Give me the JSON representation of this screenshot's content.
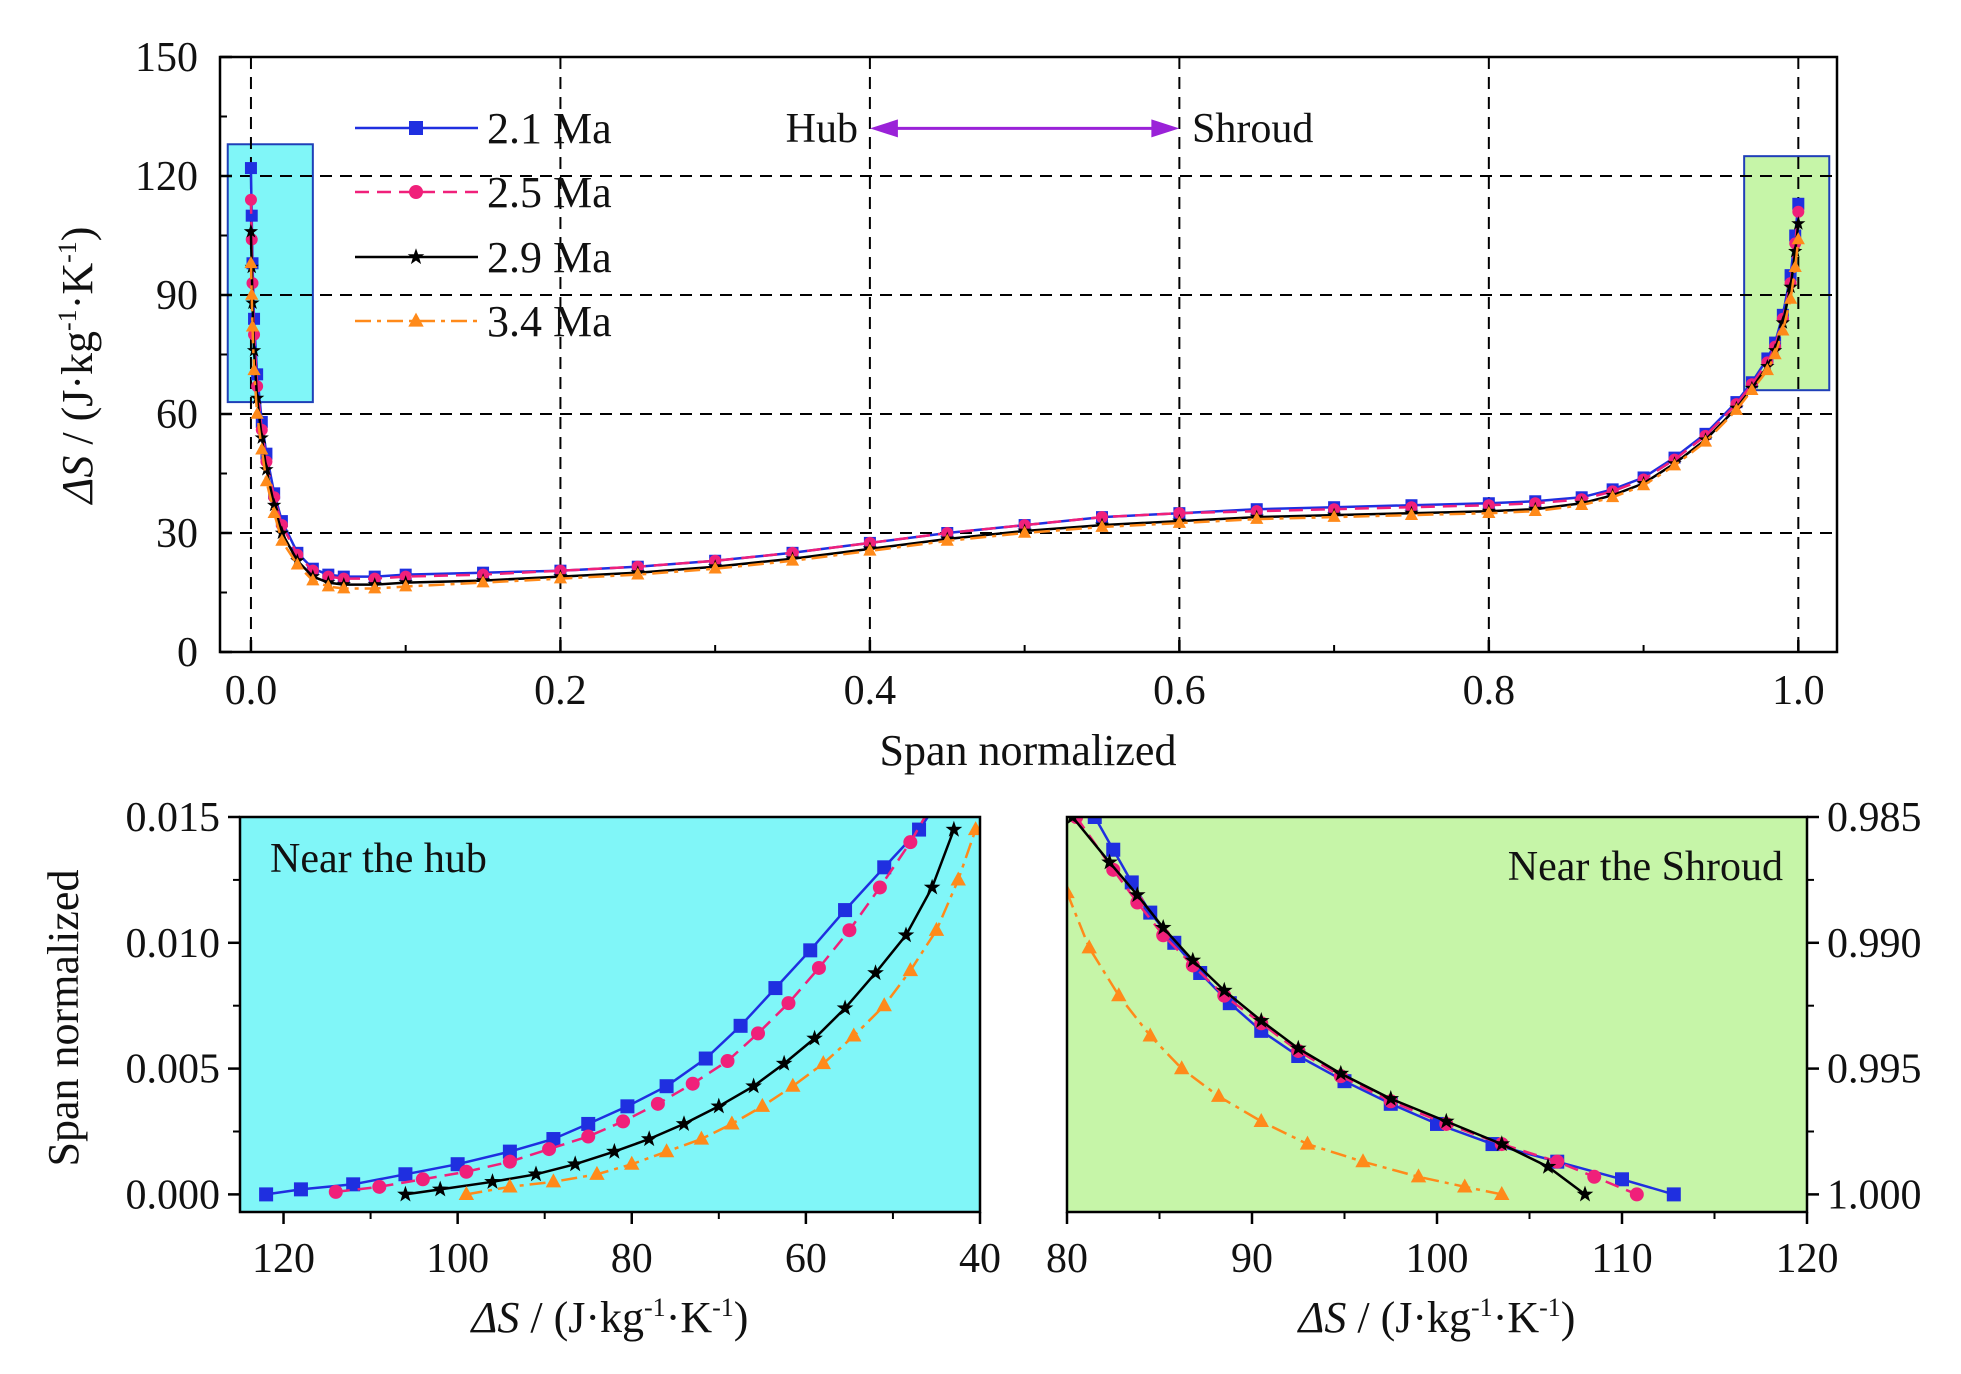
{
  "colors": {
    "s21": "#1f2fe0",
    "s25": "#f0207a",
    "s29": "#000000",
    "s34": "#ff8a1a",
    "hub_box": "#80f6f8",
    "shroud_box": "#c6f5a8",
    "hub_panel_bg": "#80f6f8",
    "shroud_panel_bg": "#c6f5a8",
    "arrow": "#9a22d8",
    "grid": "#000000"
  },
  "chart_data": [
    {
      "id": "main",
      "type": "line",
      "xlabel": "Span normalized",
      "ylabel_main": "ΔS",
      "ylabel_unit_prefix": " / (J·kg",
      "ylabel_unit_sup1": "-1",
      "ylabel_unit_mid": "·K",
      "ylabel_unit_sup2": "-1",
      "ylabel_unit_suffix": ")",
      "xlim": [
        -0.02,
        1.025
      ],
      "ylim": [
        0,
        150
      ],
      "xticks": [
        0.0,
        0.2,
        0.4,
        0.6,
        0.8,
        1.0
      ],
      "xtick_labels": [
        "0.0",
        "0.2",
        "0.4",
        "0.6",
        "0.8",
        "1.0"
      ],
      "yticks": [
        0,
        30,
        60,
        90,
        120,
        150
      ],
      "ytick_labels": [
        "0",
        "30",
        "60",
        "90",
        "120",
        "150"
      ],
      "grid": "dashed",
      "legend": {
        "position": "top-left",
        "entries": [
          "2.1 Ma",
          "2.5 Ma",
          "2.9 Ma",
          "3.4 Ma"
        ]
      },
      "annotation": {
        "left_label": "Hub",
        "right_label": "Shroud",
        "arrow_from_x": 0.4,
        "arrow_to_x": 0.6,
        "arrow_y": 132
      },
      "highlight_boxes": [
        {
          "name": "hub",
          "x": [
            -0.015,
            0.04
          ],
          "y": [
            63,
            128
          ]
        },
        {
          "name": "shroud",
          "x": [
            0.965,
            1.02
          ],
          "y": [
            66,
            125
          ]
        }
      ],
      "series": [
        {
          "name": "2.1 Ma",
          "x": [
            0,
            0.0005,
            0.001,
            0.002,
            0.004,
            0.007,
            0.01,
            0.015,
            0.02,
            0.03,
            0.04,
            0.05,
            0.06,
            0.08,
            0.1,
            0.15,
            0.2,
            0.25,
            0.3,
            0.35,
            0.4,
            0.45,
            0.5,
            0.55,
            0.6,
            0.65,
            0.7,
            0.75,
            0.8,
            0.83,
            0.86,
            0.88,
            0.9,
            0.92,
            0.94,
            0.96,
            0.97,
            0.98,
            0.985,
            0.99,
            0.995,
            0.998,
            1.0
          ],
          "y": [
            122,
            110,
            98,
            84,
            70,
            58,
            50,
            40,
            33,
            25,
            21,
            19.5,
            19,
            19,
            19.5,
            20,
            20.5,
            21.5,
            23,
            25,
            27.5,
            30,
            32,
            34,
            35,
            36,
            36.5,
            37,
            37.5,
            38,
            39,
            41,
            44,
            49,
            55,
            63,
            68,
            74,
            78,
            85,
            95,
            105,
            113
          ]
        },
        {
          "name": "2.5 Ma",
          "x": [
            0,
            0.0005,
            0.001,
            0.002,
            0.004,
            0.007,
            0.01,
            0.015,
            0.02,
            0.03,
            0.04,
            0.05,
            0.06,
            0.08,
            0.1,
            0.15,
            0.2,
            0.25,
            0.3,
            0.35,
            0.4,
            0.45,
            0.5,
            0.55,
            0.6,
            0.65,
            0.7,
            0.75,
            0.8,
            0.83,
            0.86,
            0.88,
            0.9,
            0.92,
            0.94,
            0.96,
            0.97,
            0.98,
            0.985,
            0.99,
            0.995,
            0.998,
            1.0
          ],
          "y": [
            114,
            104,
            93,
            80,
            67,
            56,
            48,
            39,
            32,
            24.5,
            20.5,
            19,
            18.5,
            18.5,
            19,
            19.5,
            20.5,
            21.5,
            23,
            25,
            27.5,
            30,
            32,
            34,
            35,
            35.5,
            36,
            36.5,
            37,
            37.5,
            38.5,
            40.5,
            43.5,
            48.5,
            54.5,
            62.5,
            67.5,
            73,
            77,
            84,
            93,
            103,
            111
          ]
        },
        {
          "name": "2.9 Ma",
          "x": [
            0,
            0.0005,
            0.001,
            0.002,
            0.004,
            0.007,
            0.01,
            0.015,
            0.02,
            0.03,
            0.04,
            0.05,
            0.06,
            0.08,
            0.1,
            0.15,
            0.2,
            0.25,
            0.3,
            0.35,
            0.4,
            0.45,
            0.5,
            0.55,
            0.6,
            0.65,
            0.7,
            0.75,
            0.8,
            0.83,
            0.86,
            0.88,
            0.9,
            0.92,
            0.94,
            0.96,
            0.97,
            0.98,
            0.985,
            0.99,
            0.995,
            0.998,
            1.0
          ],
          "y": [
            106,
            97,
            88,
            76,
            64,
            54,
            46,
            37,
            30,
            23,
            19,
            17.5,
            17,
            17,
            17.5,
            18,
            19,
            20,
            21.5,
            23.5,
            26,
            28.5,
            30.5,
            32,
            33,
            34,
            34.5,
            35,
            35.5,
            36,
            37.5,
            39.5,
            42.5,
            47.5,
            53.5,
            61.5,
            66.5,
            72,
            76,
            83,
            92,
            101,
            108
          ]
        },
        {
          "name": "3.4 Ma",
          "x": [
            0,
            0.0005,
            0.001,
            0.002,
            0.004,
            0.007,
            0.01,
            0.015,
            0.02,
            0.03,
            0.04,
            0.05,
            0.06,
            0.08,
            0.1,
            0.15,
            0.2,
            0.25,
            0.3,
            0.35,
            0.4,
            0.45,
            0.5,
            0.55,
            0.6,
            0.65,
            0.7,
            0.75,
            0.8,
            0.83,
            0.86,
            0.88,
            0.9,
            0.92,
            0.94,
            0.96,
            0.97,
            0.98,
            0.985,
            0.99,
            0.995,
            0.998,
            1.0
          ],
          "y": [
            98,
            90,
            82,
            71,
            60,
            51,
            43,
            35,
            28,
            22,
            18,
            16.5,
            16,
            16,
            16.5,
            17.5,
            18.5,
            19.5,
            21,
            23,
            25.5,
            28,
            30,
            31.5,
            32.5,
            33.5,
            34,
            34.5,
            35,
            35.5,
            37,
            39,
            42,
            47,
            53,
            61,
            66,
            71,
            75,
            81,
            89,
            97,
            104
          ]
        }
      ]
    },
    {
      "id": "hub",
      "type": "line",
      "title": "Near the hub",
      "xlabel_main": "ΔS",
      "xlabel_unit_prefix": " / (J·kg",
      "xlabel_unit_sup1": "-1",
      "xlabel_unit_mid": "·K",
      "xlabel_unit_sup2": "-1",
      "xlabel_unit_suffix": ")",
      "ylabel": "Span normalized",
      "xlim": [
        125,
        40
      ],
      "ylim": [
        -0.0007,
        0.015
      ],
      "xticks": [
        120,
        100,
        80,
        60,
        40
      ],
      "xtick_labels": [
        "120",
        "100",
        "80",
        "60",
        "40"
      ],
      "yticks": [
        0.0,
        0.005,
        0.01,
        0.015
      ],
      "ytick_labels": [
        "0.000",
        "0.005",
        "0.010",
        "0.015"
      ],
      "series": [
        {
          "name": "2.1 Ma",
          "x": [
            122,
            118,
            112,
            106,
            100,
            94,
            89,
            85,
            80.5,
            76,
            71.5,
            67.5,
            63.5,
            59.5,
            55.5,
            51,
            47,
            45
          ],
          "y": [
            0,
            0.0002,
            0.0004,
            0.0008,
            0.0012,
            0.0017,
            0.0022,
            0.0028,
            0.0035,
            0.0043,
            0.0054,
            0.0067,
            0.0082,
            0.0097,
            0.0113,
            0.013,
            0.0145,
            0.0155
          ]
        },
        {
          "name": "2.5 Ma",
          "x": [
            114,
            109,
            104,
            99,
            94,
            89.5,
            85,
            81,
            77,
            73,
            69,
            65.5,
            62,
            58.5,
            55,
            51.5,
            48,
            45.5
          ],
          "y": [
            0.0001,
            0.0003,
            0.0006,
            0.0009,
            0.0013,
            0.0018,
            0.0023,
            0.0029,
            0.0036,
            0.0044,
            0.0053,
            0.0064,
            0.0076,
            0.009,
            0.0105,
            0.0122,
            0.014,
            0.0155
          ]
        },
        {
          "name": "2.9 Ma",
          "x": [
            106,
            102,
            96,
            91,
            86.5,
            82,
            78,
            74,
            70,
            66,
            62.5,
            59,
            55.5,
            52,
            48.5,
            45.5,
            43
          ],
          "y": [
            0,
            0.0002,
            0.0005,
            0.0008,
            0.0012,
            0.0017,
            0.0022,
            0.0028,
            0.0035,
            0.0043,
            0.0052,
            0.0062,
            0.0074,
            0.0088,
            0.0103,
            0.0122,
            0.0145
          ]
        },
        {
          "name": "3.4 Ma",
          "x": [
            99,
            94,
            89,
            84,
            80,
            76,
            72,
            68.5,
            65,
            61.5,
            58,
            54.5,
            51,
            48,
            45,
            42.5,
            40.5
          ],
          "y": [
            0,
            0.0003,
            0.0005,
            0.0008,
            0.0012,
            0.0017,
            0.0022,
            0.0028,
            0.0035,
            0.0043,
            0.0052,
            0.0063,
            0.0075,
            0.0089,
            0.0105,
            0.0125,
            0.0145
          ]
        }
      ]
    },
    {
      "id": "shroud",
      "type": "line",
      "title": "Near the Shroud",
      "xlabel_main": "ΔS",
      "xlabel_unit_prefix": " / (J·kg",
      "xlabel_unit_sup1": "-1",
      "xlabel_unit_mid": "·K",
      "xlabel_unit_sup2": "-1",
      "xlabel_unit_suffix": ")",
      "xlim": [
        80,
        120
      ],
      "ylim": [
        1.0007,
        0.985
      ],
      "xticks": [
        80,
        90,
        100,
        110,
        120
      ],
      "xtick_labels": [
        "80",
        "90",
        "100",
        "110",
        "120"
      ],
      "yticks": [
        0.985,
        0.99,
        0.995,
        1.0
      ],
      "ytick_labels": [
        "0.985",
        "0.990",
        "0.995",
        "1.000"
      ],
      "yaxis_side": "right",
      "series": [
        {
          "name": "2.1 Ma",
          "x": [
            81.5,
            82.5,
            83.5,
            84.5,
            85.8,
            87.2,
            88.8,
            90.5,
            92.5,
            95,
            97.5,
            100,
            103,
            106.5,
            110,
            112.8
          ],
          "y": [
            0.985,
            0.9863,
            0.9876,
            0.9888,
            0.99,
            0.9912,
            0.9924,
            0.9935,
            0.9945,
            0.9955,
            0.9964,
            0.9972,
            0.998,
            0.9987,
            0.9994,
            1.0
          ]
        },
        {
          "name": "2.5 Ma",
          "x": [
            80.5,
            82.5,
            83.8,
            85.2,
            86.8,
            88.5,
            90.5,
            92.5,
            94.8,
            97.5,
            100.5,
            103.5,
            106.5,
            108.5,
            110.8
          ],
          "y": [
            0.985,
            0.9871,
            0.9884,
            0.9897,
            0.9909,
            0.9921,
            0.9932,
            0.9943,
            0.9953,
            0.9963,
            0.9972,
            0.998,
            0.9987,
            0.9993,
            1.0
          ]
        },
        {
          "name": "2.9 Ma",
          "x": [
            80.3,
            82.3,
            83.8,
            85.2,
            86.8,
            88.5,
            90.5,
            92.5,
            94.8,
            97.5,
            100.5,
            103.5,
            106,
            108
          ],
          "y": [
            0.985,
            0.9868,
            0.9881,
            0.9894,
            0.9907,
            0.9919,
            0.9931,
            0.9942,
            0.9952,
            0.9962,
            0.9971,
            0.998,
            0.9989,
            1.0
          ]
        },
        {
          "name": "3.4 Ma",
          "x": [
            80,
            81.2,
            82.8,
            84.5,
            86.2,
            88.2,
            90.5,
            93,
            96,
            99,
            101.5,
            103.5
          ],
          "y": [
            0.988,
            0.9902,
            0.9921,
            0.9937,
            0.995,
            0.9961,
            0.9971,
            0.998,
            0.9987,
            0.9993,
            0.9997,
            1.0
          ]
        }
      ]
    }
  ]
}
